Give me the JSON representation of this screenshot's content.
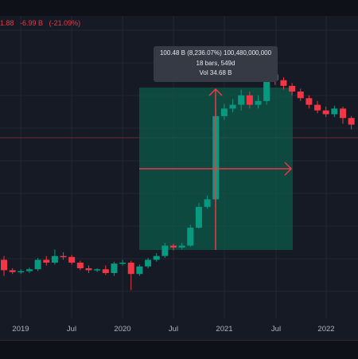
{
  "legend": {
    "price": "1.88",
    "change": "-6.99 B",
    "change_pct": "(-21.09%)"
  },
  "measure_tooltip": {
    "line1": "100.48 B (8,236.07%) 100,480,000,000",
    "line2": "18 bars, 549d",
    "line3": "Vol 34.68 B"
  },
  "x_axis": {
    "labels": [
      "2019",
      "Jul",
      "2020",
      "Jul",
      "2021",
      "Jul",
      "2022"
    ]
  },
  "colors": {
    "background": "#161a25",
    "up": "#089981",
    "down": "#f23645",
    "measure_fill": "#0c5a4a",
    "measure_line": "#f23645",
    "tooltip_bg": "#363a45"
  },
  "chart_data": {
    "type": "candlestick",
    "timeframe": "monthly",
    "candles": [
      {
        "dir": "down",
        "o": 0.62,
        "c": 0.51,
        "h": 0.66,
        "l": 0.45
      },
      {
        "dir": "down",
        "o": 0.51,
        "c": 0.49,
        "h": 0.53,
        "l": 0.47
      },
      {
        "dir": "up",
        "o": 0.49,
        "c": 0.5,
        "h": 0.52,
        "l": 0.47
      },
      {
        "dir": "up",
        "o": 0.5,
        "c": 0.52,
        "h": 0.54,
        "l": 0.48
      },
      {
        "dir": "up",
        "o": 0.52,
        "c": 0.62,
        "h": 0.64,
        "l": 0.5
      },
      {
        "dir": "down",
        "o": 0.62,
        "c": 0.59,
        "h": 0.66,
        "l": 0.56
      },
      {
        "dir": "up",
        "o": 0.59,
        "c": 0.66,
        "h": 0.73,
        "l": 0.57
      },
      {
        "dir": "down",
        "o": 0.66,
        "c": 0.65,
        "h": 0.7,
        "l": 0.62
      },
      {
        "dir": "down",
        "o": 0.65,
        "c": 0.59,
        "h": 0.67,
        "l": 0.57
      },
      {
        "dir": "down",
        "o": 0.59,
        "c": 0.53,
        "h": 0.61,
        "l": 0.51
      },
      {
        "dir": "down",
        "o": 0.53,
        "c": 0.51,
        "h": 0.56,
        "l": 0.48
      },
      {
        "dir": "up",
        "o": 0.51,
        "c": 0.52,
        "h": 0.53,
        "l": 0.49
      },
      {
        "dir": "down",
        "o": 0.52,
        "c": 0.48,
        "h": 0.56,
        "l": 0.46
      },
      {
        "dir": "up",
        "o": 0.48,
        "c": 0.58,
        "h": 0.6,
        "l": 0.45
      },
      {
        "dir": "up",
        "o": 0.58,
        "c": 0.59,
        "h": 0.62,
        "l": 0.56
      },
      {
        "dir": "down",
        "o": 0.59,
        "c": 0.47,
        "h": 0.61,
        "l": 0.3
      },
      {
        "dir": "up",
        "o": 0.47,
        "c": 0.55,
        "h": 0.57,
        "l": 0.45
      },
      {
        "dir": "up",
        "o": 0.55,
        "c": 0.62,
        "h": 0.64,
        "l": 0.53
      },
      {
        "dir": "up",
        "o": 0.62,
        "c": 0.66,
        "h": 0.69,
        "l": 0.6
      },
      {
        "dir": "up",
        "o": 0.66,
        "c": 0.77,
        "h": 0.8,
        "l": 0.64
      },
      {
        "dir": "down",
        "o": 0.77,
        "c": 0.75,
        "h": 0.79,
        "l": 0.72
      },
      {
        "dir": "up",
        "o": 0.75,
        "c": 0.77,
        "h": 0.8,
        "l": 0.73
      },
      {
        "dir": "up",
        "o": 0.77,
        "c": 0.96,
        "h": 0.99,
        "l": 0.76
      },
      {
        "dir": "up",
        "o": 0.96,
        "c": 1.18,
        "h": 1.22,
        "l": 0.95
      },
      {
        "dir": "up",
        "o": 1.18,
        "c": 1.26,
        "h": 1.3,
        "l": 1.16
      },
      {
        "dir": "up",
        "o": 1.26,
        "c": 2.14,
        "h": 2.22,
        "l": 1.24
      },
      {
        "dir": "up",
        "o": 2.14,
        "c": 2.22,
        "h": 2.27,
        "l": 2.1
      },
      {
        "dir": "up",
        "o": 2.22,
        "c": 2.26,
        "h": 2.32,
        "l": 2.18
      },
      {
        "dir": "up",
        "o": 2.26,
        "c": 2.36,
        "h": 2.42,
        "l": 2.2
      },
      {
        "dir": "down",
        "o": 2.36,
        "c": 2.26,
        "h": 2.4,
        "l": 2.22
      },
      {
        "dir": "up",
        "o": 2.26,
        "c": 2.3,
        "h": 2.36,
        "l": 2.22
      },
      {
        "dir": "up",
        "o": 2.3,
        "c": 2.58,
        "h": 2.62,
        "l": 2.26
      },
      {
        "dir": "down",
        "o": 2.58,
        "c": 2.52,
        "h": 2.62,
        "l": 2.47
      },
      {
        "dir": "down",
        "o": 2.52,
        "c": 2.46,
        "h": 2.55,
        "l": 2.42
      },
      {
        "dir": "down",
        "o": 2.46,
        "c": 2.4,
        "h": 2.49,
        "l": 2.36
      },
      {
        "dir": "down",
        "o": 2.4,
        "c": 2.33,
        "h": 2.43,
        "l": 2.3
      },
      {
        "dir": "down",
        "o": 2.33,
        "c": 2.26,
        "h": 2.36,
        "l": 2.22
      },
      {
        "dir": "down",
        "o": 2.26,
        "c": 2.2,
        "h": 2.3,
        "l": 2.17
      },
      {
        "dir": "down",
        "o": 2.2,
        "c": 2.16,
        "h": 2.24,
        "l": 2.13
      },
      {
        "dir": "up",
        "o": 2.16,
        "c": 2.22,
        "h": 2.25,
        "l": 2.13
      },
      {
        "dir": "down",
        "o": 2.22,
        "c": 2.12,
        "h": 2.24,
        "l": 2.06
      },
      {
        "dir": "down",
        "o": 2.12,
        "c": 2.05,
        "h": 2.14,
        "l": 2.0
      }
    ]
  }
}
